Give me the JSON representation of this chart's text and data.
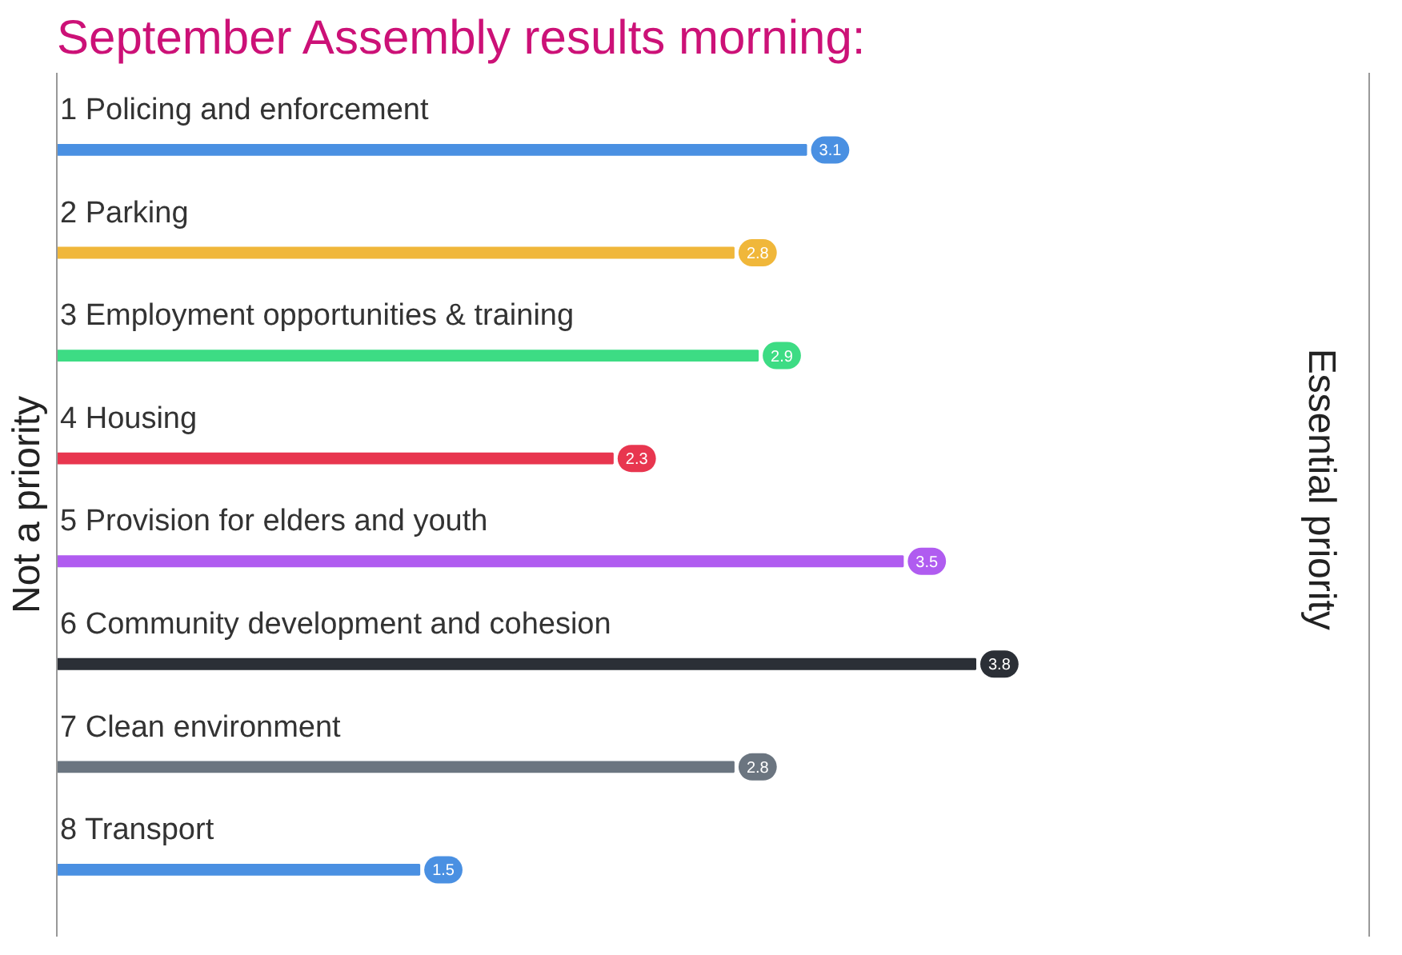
{
  "chart_data": {
    "type": "bar",
    "orientation": "horizontal",
    "title": "September Assembly results morning:",
    "ylabel": "Not a priority",
    "annotations": [
      "Essential priority"
    ],
    "categories": [
      "1 Policing and enforcement",
      "2 Parking",
      "3 Employment opportunities & training",
      "4 Housing",
      "5 Provision for elders and youth",
      "6 Community development and cohesion",
      "7 Clean environment",
      "8 Transport"
    ],
    "values": [
      3.1,
      2.8,
      2.9,
      2.3,
      3.5,
      3.8,
      2.8,
      1.5
    ],
    "colors": [
      "#4a90e2",
      "#f0b73a",
      "#3ddc84",
      "#e8364f",
      "#b05cf0",
      "#2b2f36",
      "#6b7580",
      "#4a90e2"
    ],
    "data_labels": true
  }
}
